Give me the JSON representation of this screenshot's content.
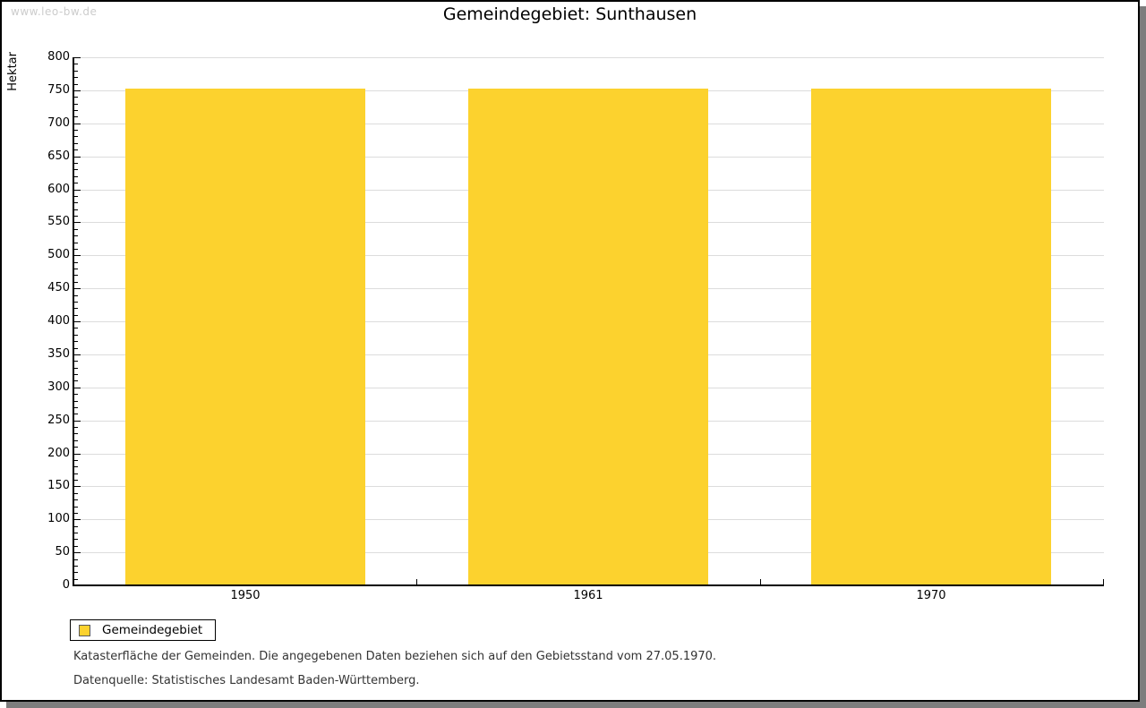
{
  "watermark": "www.leo-bw.de",
  "header": {
    "title": "Gemeindegebiet: Sunthausen"
  },
  "legend": {
    "label": "Gemeindegebiet",
    "position": "bottom-left"
  },
  "footnotes": {
    "line1": "Katasterfläche der Gemeinden. Die angegebenen Daten beziehen sich auf den Gebietsstand vom 27.05.1970.",
    "line2": "Datenquelle: Statistisches Landesamt Baden-Württemberg."
  },
  "colors": {
    "bar": "#fcd22e",
    "grid": "#dcdcdc",
    "axis": "#000000",
    "watermark_text": "#cccccc",
    "frame_shadow": "#7d7d7d",
    "footnote_text": "#333333"
  },
  "chart_data": {
    "type": "bar",
    "title": "Gemeindegebiet: Sunthausen",
    "categories": [
      "1950",
      "1961",
      "1970"
    ],
    "series": [
      {
        "name": "Gemeindegebiet",
        "color": "#fcd22e",
        "values": [
          753,
          753,
          753
        ]
      }
    ],
    "xlabel": "",
    "ylabel": "Hektar",
    "ylim": [
      0,
      800
    ],
    "ytick_major_step": 50,
    "ytick_minor_step": 10,
    "grid": true,
    "legend_position": "bottom-left"
  }
}
